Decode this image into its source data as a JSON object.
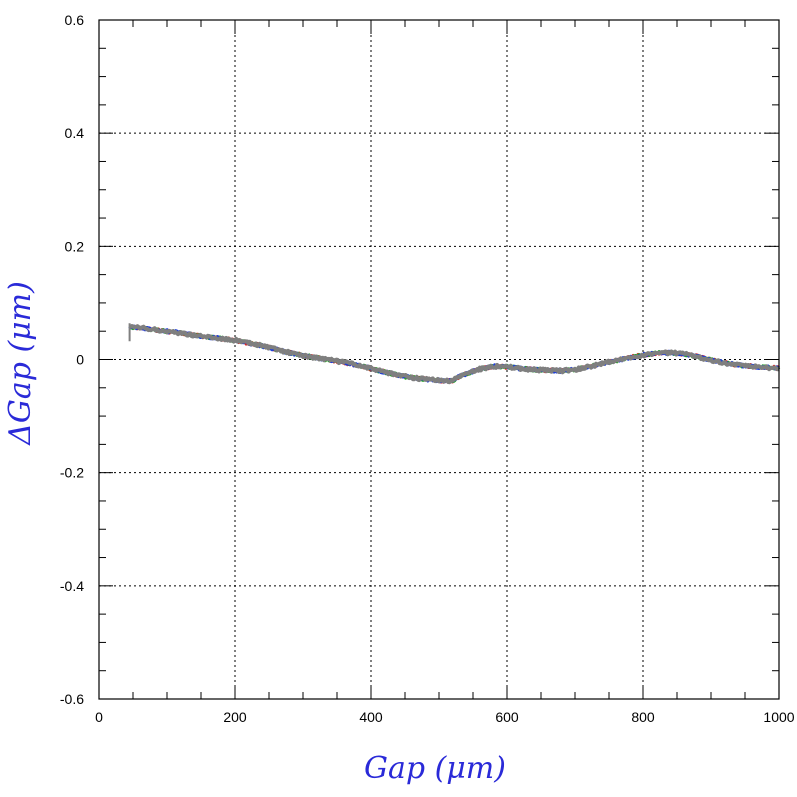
{
  "chart_data": {
    "type": "line",
    "title": "",
    "xlabel": "Gap  (μm)",
    "ylabel": "ΔGap  (μm)",
    "xlim": [
      0,
      1000
    ],
    "ylim": [
      -0.6,
      0.6
    ],
    "x_ticks": [
      0,
      200,
      400,
      600,
      800,
      1000
    ],
    "x_tick_labels": [
      "0",
      "200",
      "400",
      "600",
      "800",
      "1000"
    ],
    "y_ticks": [
      -0.6,
      -0.4,
      -0.2,
      0,
      0.2,
      0.4,
      0.6
    ],
    "y_tick_labels": [
      "-0.6",
      "-0.4",
      "-0.2",
      "0",
      "0.2",
      "0.4",
      "0.6"
    ],
    "grid": true,
    "grid_style": "dotted",
    "axis_title_color": "#2a2ad8",
    "series_colors": [
      "#d62728",
      "#2ca02c",
      "#1f3fd6",
      "#7f7f7f"
    ],
    "series": [
      {
        "x": [
          45,
          50,
          60,
          80,
          100,
          120,
          140,
          160,
          180,
          200,
          220,
          240,
          260,
          280,
          300,
          320,
          340,
          360,
          380,
          400,
          420,
          440,
          460,
          480,
          500,
          510,
          520,
          530,
          540,
          560,
          580,
          600,
          620,
          640,
          660,
          680,
          700,
          720,
          740,
          760,
          780,
          800,
          820,
          840,
          860,
          880,
          900,
          920,
          940,
          960,
          980,
          1000
        ],
        "y": [
          0.057,
          0.057,
          0.056,
          0.053,
          0.05,
          0.047,
          0.043,
          0.04,
          0.037,
          0.034,
          0.029,
          0.024,
          0.018,
          0.012,
          0.007,
          0.003,
          -0.001,
          -0.005,
          -0.01,
          -0.016,
          -0.022,
          -0.028,
          -0.032,
          -0.035,
          -0.037,
          -0.038,
          -0.037,
          -0.03,
          -0.025,
          -0.017,
          -0.012,
          -0.013,
          -0.016,
          -0.018,
          -0.019,
          -0.02,
          -0.018,
          -0.013,
          -0.007,
          -0.002,
          0.003,
          0.008,
          0.011,
          0.012,
          0.01,
          0.005,
          -0.001,
          -0.006,
          -0.01,
          -0.012,
          -0.014,
          -0.015
        ]
      }
    ]
  }
}
